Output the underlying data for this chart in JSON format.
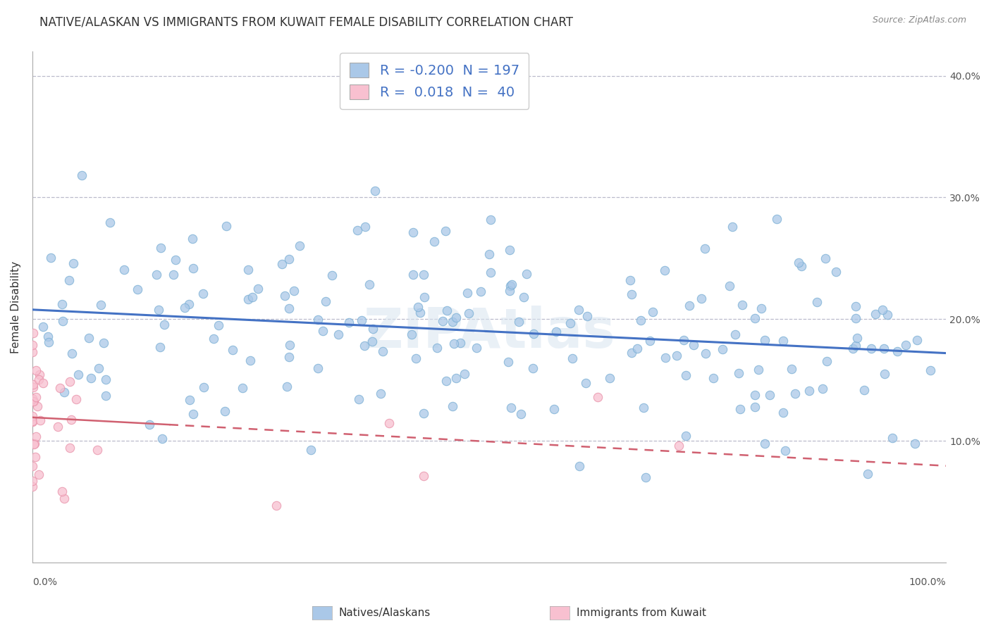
{
  "title": "NATIVE/ALASKAN VS IMMIGRANTS FROM KUWAIT FEMALE DISABILITY CORRELATION CHART",
  "source": "Source: ZipAtlas.com",
  "ylabel": "Female Disability",
  "xlim": [
    0,
    1
  ],
  "ylim": [
    0.0,
    0.42
  ],
  "yticks": [
    0.1,
    0.2,
    0.3,
    0.4
  ],
  "right_ytick_labels": [
    "10.0%",
    "20.0%",
    "30.0%",
    "40.0%"
  ],
  "native_R": -0.2,
  "native_N": 197,
  "kuwait_R": 0.018,
  "kuwait_N": 40,
  "native_color": "#aac8e8",
  "native_edge_color": "#7aafd4",
  "native_line_color": "#4472c4",
  "kuwait_color": "#f8c0d0",
  "kuwait_edge_color": "#e890a8",
  "kuwait_line_color": "#d06070",
  "background_color": "#ffffff",
  "grid_color": "#bbbbcc",
  "watermark_color": "#d8e4f0",
  "title_fontsize": 12,
  "axis_label_fontsize": 11,
  "tick_fontsize": 10,
  "legend_fontsize": 14,
  "legend_R_color": "#4472c4",
  "legend_N_color": "#4472c4"
}
